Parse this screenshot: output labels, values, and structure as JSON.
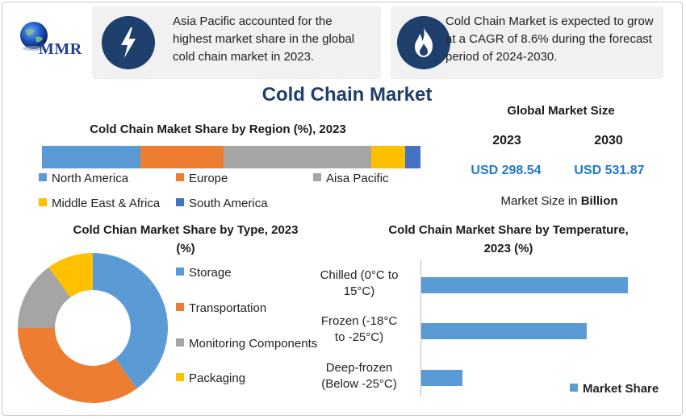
{
  "logo": {
    "text": "MMR"
  },
  "info_boxes": [
    {
      "icon": "lightning-icon",
      "text": "Asia Pacific accounted for the highest market share in the global cold chain market in 2023."
    },
    {
      "icon": "flame-icon",
      "text": "Cold Chain Market is expected to grow at a CAGR of 8.6% during the forecast period of 2024-2030."
    }
  ],
  "main_title": "Cold Chain Market",
  "global_market_size": {
    "title": "Global Market Size",
    "years": [
      "2023",
      "2030"
    ],
    "values": [
      "USD 298.54",
      "USD 531.87"
    ],
    "unit_prefix": "Market Size in ",
    "unit_bold": "Billion"
  },
  "chart_data": [
    {
      "type": "bar",
      "title": "Cold Chain Maket Share by Region (%), 2023",
      "stacked": true,
      "orientation": "horizontal",
      "series": [
        {
          "name": "North America",
          "values": [
            26
          ],
          "color": "#5b9bd5"
        },
        {
          "name": "Europe",
          "values": [
            22
          ],
          "color": "#ed7d31"
        },
        {
          "name": "Aisa Pacific",
          "values": [
            39
          ],
          "color": "#a5a5a5"
        },
        {
          "name": "Middle East & Africa",
          "values": [
            9
          ],
          "color": "#ffc000"
        },
        {
          "name": "South America",
          "values": [
            4
          ],
          "color": "#4472c4"
        }
      ]
    },
    {
      "type": "pie",
      "donut": true,
      "title": "Cold Chian Market Share by Type, 2023",
      "title_unit": "(%)",
      "categories": [
        "Storage",
        "Transportation",
        "Monitoring Components",
        "Packaging"
      ],
      "values": [
        40,
        35,
        15,
        10
      ],
      "colors": [
        "#5b9bd5",
        "#ed7d31",
        "#a5a5a5",
        "#ffc000"
      ]
    },
    {
      "type": "bar",
      "orientation": "horizontal",
      "title": "Cold Chain Market Share by Temperature,",
      "title_line2": "2023 (%)",
      "categories": [
        [
          "Chilled (0°C to",
          "15°C)"
        ],
        [
          "Frozen (-18°C",
          "to -25°C)"
        ],
        [
          "Deep-frozen",
          "(Below -25°C)"
        ]
      ],
      "series": [
        {
          "name": "Market Share",
          "values": [
            50,
            40,
            10
          ],
          "color": "#5b9bd5"
        }
      ],
      "xlim": [
        0,
        55
      ]
    }
  ]
}
